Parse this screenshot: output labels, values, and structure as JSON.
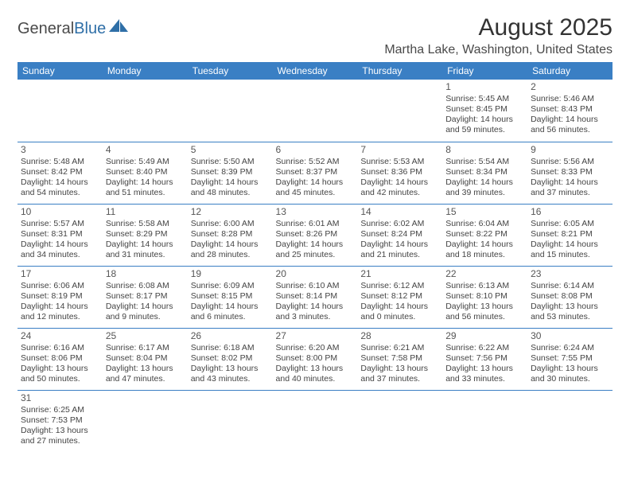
{
  "brand": {
    "part1": "General",
    "part2": "Blue"
  },
  "title": "August 2025",
  "location": "Martha Lake, Washington, United States",
  "colors": {
    "header_bg": "#3a7fc4",
    "header_text": "#ffffff",
    "border": "#3a7fc4",
    "brand_blue": "#2f6fa7",
    "text": "#444444"
  },
  "day_headers": [
    "Sunday",
    "Monday",
    "Tuesday",
    "Wednesday",
    "Thursday",
    "Friday",
    "Saturday"
  ],
  "weeks": [
    [
      null,
      null,
      null,
      null,
      null,
      {
        "n": "1",
        "sunrise": "Sunrise: 5:45 AM",
        "sunset": "Sunset: 8:45 PM",
        "daylight": "Daylight: 14 hours and 59 minutes."
      },
      {
        "n": "2",
        "sunrise": "Sunrise: 5:46 AM",
        "sunset": "Sunset: 8:43 PM",
        "daylight": "Daylight: 14 hours and 56 minutes."
      }
    ],
    [
      {
        "n": "3",
        "sunrise": "Sunrise: 5:48 AM",
        "sunset": "Sunset: 8:42 PM",
        "daylight": "Daylight: 14 hours and 54 minutes."
      },
      {
        "n": "4",
        "sunrise": "Sunrise: 5:49 AM",
        "sunset": "Sunset: 8:40 PM",
        "daylight": "Daylight: 14 hours and 51 minutes."
      },
      {
        "n": "5",
        "sunrise": "Sunrise: 5:50 AM",
        "sunset": "Sunset: 8:39 PM",
        "daylight": "Daylight: 14 hours and 48 minutes."
      },
      {
        "n": "6",
        "sunrise": "Sunrise: 5:52 AM",
        "sunset": "Sunset: 8:37 PM",
        "daylight": "Daylight: 14 hours and 45 minutes."
      },
      {
        "n": "7",
        "sunrise": "Sunrise: 5:53 AM",
        "sunset": "Sunset: 8:36 PM",
        "daylight": "Daylight: 14 hours and 42 minutes."
      },
      {
        "n": "8",
        "sunrise": "Sunrise: 5:54 AM",
        "sunset": "Sunset: 8:34 PM",
        "daylight": "Daylight: 14 hours and 39 minutes."
      },
      {
        "n": "9",
        "sunrise": "Sunrise: 5:56 AM",
        "sunset": "Sunset: 8:33 PM",
        "daylight": "Daylight: 14 hours and 37 minutes."
      }
    ],
    [
      {
        "n": "10",
        "sunrise": "Sunrise: 5:57 AM",
        "sunset": "Sunset: 8:31 PM",
        "daylight": "Daylight: 14 hours and 34 minutes."
      },
      {
        "n": "11",
        "sunrise": "Sunrise: 5:58 AM",
        "sunset": "Sunset: 8:29 PM",
        "daylight": "Daylight: 14 hours and 31 minutes."
      },
      {
        "n": "12",
        "sunrise": "Sunrise: 6:00 AM",
        "sunset": "Sunset: 8:28 PM",
        "daylight": "Daylight: 14 hours and 28 minutes."
      },
      {
        "n": "13",
        "sunrise": "Sunrise: 6:01 AM",
        "sunset": "Sunset: 8:26 PM",
        "daylight": "Daylight: 14 hours and 25 minutes."
      },
      {
        "n": "14",
        "sunrise": "Sunrise: 6:02 AM",
        "sunset": "Sunset: 8:24 PM",
        "daylight": "Daylight: 14 hours and 21 minutes."
      },
      {
        "n": "15",
        "sunrise": "Sunrise: 6:04 AM",
        "sunset": "Sunset: 8:22 PM",
        "daylight": "Daylight: 14 hours and 18 minutes."
      },
      {
        "n": "16",
        "sunrise": "Sunrise: 6:05 AM",
        "sunset": "Sunset: 8:21 PM",
        "daylight": "Daylight: 14 hours and 15 minutes."
      }
    ],
    [
      {
        "n": "17",
        "sunrise": "Sunrise: 6:06 AM",
        "sunset": "Sunset: 8:19 PM",
        "daylight": "Daylight: 14 hours and 12 minutes."
      },
      {
        "n": "18",
        "sunrise": "Sunrise: 6:08 AM",
        "sunset": "Sunset: 8:17 PM",
        "daylight": "Daylight: 14 hours and 9 minutes."
      },
      {
        "n": "19",
        "sunrise": "Sunrise: 6:09 AM",
        "sunset": "Sunset: 8:15 PM",
        "daylight": "Daylight: 14 hours and 6 minutes."
      },
      {
        "n": "20",
        "sunrise": "Sunrise: 6:10 AM",
        "sunset": "Sunset: 8:14 PM",
        "daylight": "Daylight: 14 hours and 3 minutes."
      },
      {
        "n": "21",
        "sunrise": "Sunrise: 6:12 AM",
        "sunset": "Sunset: 8:12 PM",
        "daylight": "Daylight: 14 hours and 0 minutes."
      },
      {
        "n": "22",
        "sunrise": "Sunrise: 6:13 AM",
        "sunset": "Sunset: 8:10 PM",
        "daylight": "Daylight: 13 hours and 56 minutes."
      },
      {
        "n": "23",
        "sunrise": "Sunrise: 6:14 AM",
        "sunset": "Sunset: 8:08 PM",
        "daylight": "Daylight: 13 hours and 53 minutes."
      }
    ],
    [
      {
        "n": "24",
        "sunrise": "Sunrise: 6:16 AM",
        "sunset": "Sunset: 8:06 PM",
        "daylight": "Daylight: 13 hours and 50 minutes."
      },
      {
        "n": "25",
        "sunrise": "Sunrise: 6:17 AM",
        "sunset": "Sunset: 8:04 PM",
        "daylight": "Daylight: 13 hours and 47 minutes."
      },
      {
        "n": "26",
        "sunrise": "Sunrise: 6:18 AM",
        "sunset": "Sunset: 8:02 PM",
        "daylight": "Daylight: 13 hours and 43 minutes."
      },
      {
        "n": "27",
        "sunrise": "Sunrise: 6:20 AM",
        "sunset": "Sunset: 8:00 PM",
        "daylight": "Daylight: 13 hours and 40 minutes."
      },
      {
        "n": "28",
        "sunrise": "Sunrise: 6:21 AM",
        "sunset": "Sunset: 7:58 PM",
        "daylight": "Daylight: 13 hours and 37 minutes."
      },
      {
        "n": "29",
        "sunrise": "Sunrise: 6:22 AM",
        "sunset": "Sunset: 7:56 PM",
        "daylight": "Daylight: 13 hours and 33 minutes."
      },
      {
        "n": "30",
        "sunrise": "Sunrise: 6:24 AM",
        "sunset": "Sunset: 7:55 PM",
        "daylight": "Daylight: 13 hours and 30 minutes."
      }
    ],
    [
      {
        "n": "31",
        "sunrise": "Sunrise: 6:25 AM",
        "sunset": "Sunset: 7:53 PM",
        "daylight": "Daylight: 13 hours and 27 minutes."
      },
      null,
      null,
      null,
      null,
      null,
      null
    ]
  ]
}
